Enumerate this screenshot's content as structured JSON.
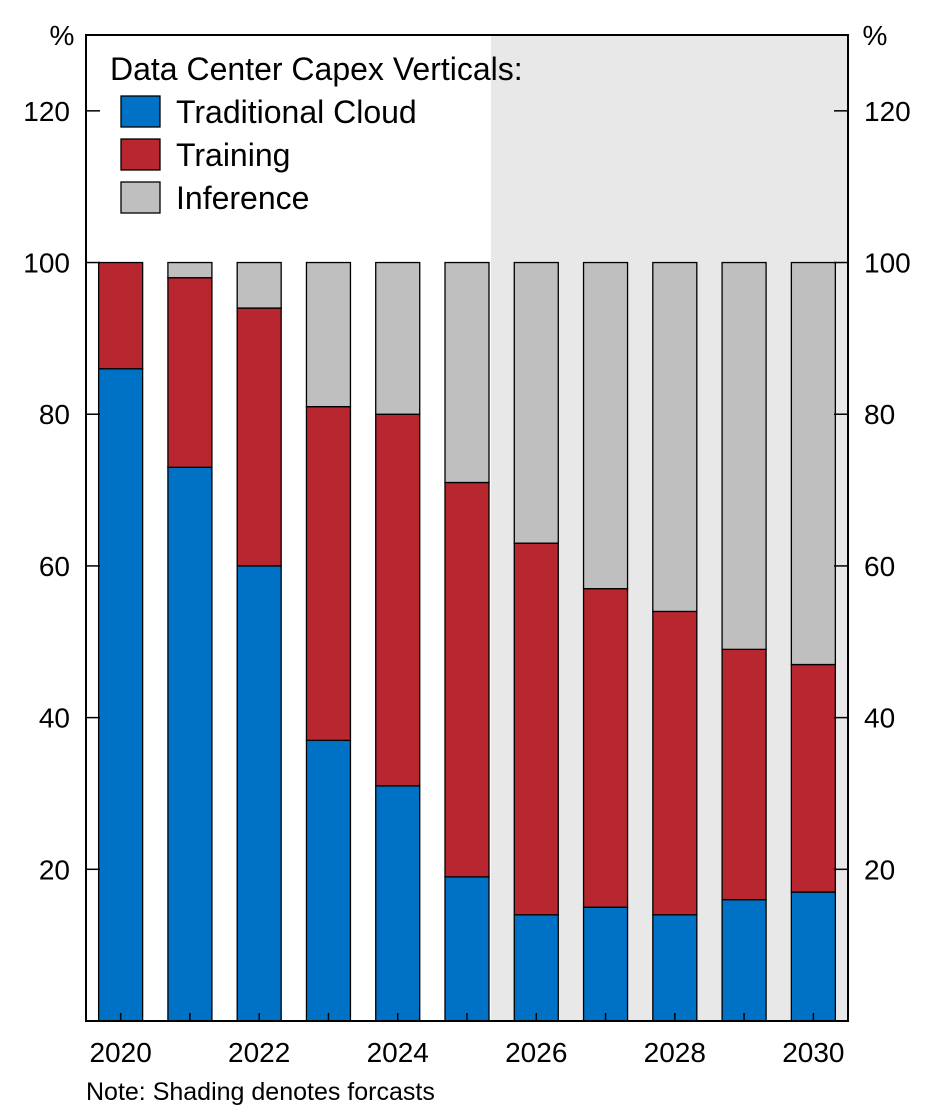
{
  "chart_data": {
    "type": "bar",
    "stacked": true,
    "categories": [
      "2020",
      "2021",
      "2022",
      "2023",
      "2024",
      "2025",
      "2026",
      "2027",
      "2028",
      "2029",
      "2030"
    ],
    "x_tick_labels": [
      "2020",
      "2022",
      "2024",
      "2026",
      "2028",
      "2030"
    ],
    "series": [
      {
        "name": "Traditional Cloud",
        "color": "#0072c6",
        "values": [
          86,
          73,
          60,
          37,
          31,
          19,
          14,
          15,
          14,
          16,
          17
        ]
      },
      {
        "name": "Training",
        "color": "#b8262f",
        "values": [
          14,
          25,
          34,
          44,
          49,
          52,
          49,
          42,
          40,
          33,
          30
        ]
      },
      {
        "name": "Inference",
        "color": "#bfbfbf",
        "values": [
          0,
          2,
          6,
          19,
          20,
          29,
          37,
          43,
          46,
          51,
          53
        ]
      }
    ],
    "legend_title": "Data Center Capex Verticals:",
    "legend_position": "top-left",
    "y_unit_left": "%",
    "y_unit_right": "%",
    "ylim": [
      0,
      130
    ],
    "y_ticks": [
      20,
      40,
      60,
      80,
      100,
      120
    ],
    "forecast_shading_start": "2026",
    "shading_color": "#e8e8e8",
    "grid": false
  },
  "note": "Note: Shading denotes forcasts"
}
